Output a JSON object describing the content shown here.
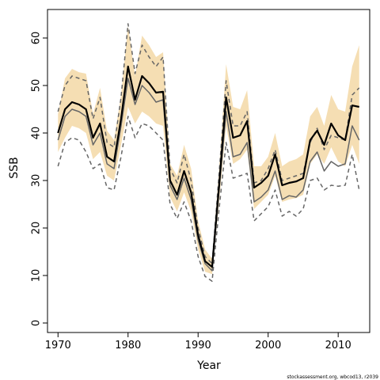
{
  "chart_data": {
    "type": "line",
    "xlabel": "Year",
    "ylabel": "SSB",
    "footnote": "stockassessment.org, wbcod13, r2039",
    "xlim": [
      1968.5,
      2014.5
    ],
    "ylim": [
      -2,
      66
    ],
    "xticks": [
      1970,
      1980,
      1990,
      2000,
      2010
    ],
    "yticks": [
      0,
      10,
      20,
      30,
      40,
      50,
      60
    ],
    "grid": false,
    "legend": "none",
    "colors": {
      "band_fill": "#f5deb3",
      "estimate": "#000000",
      "comparison": "#666666",
      "comparison_bounds": "#666666"
    },
    "x": [
      1970,
      1971,
      1972,
      1973,
      1974,
      1975,
      1976,
      1977,
      1978,
      1979,
      1980,
      1981,
      1982,
      1983,
      1984,
      1985,
      1986,
      1987,
      1988,
      1989,
      1990,
      1991,
      1992,
      1993,
      1994,
      1995,
      1996,
      1997,
      1998,
      1999,
      2000,
      2001,
      2002,
      2003,
      2004,
      2005,
      2006,
      2007,
      2008,
      2009,
      2010,
      2011,
      2012,
      2013
    ],
    "series": [
      {
        "role": "estimate",
        "style": "solid-thick",
        "values": [
          40,
          45,
          46.5,
          46,
          45,
          39,
          42,
          35,
          34,
          43,
          54,
          47,
          52,
          50.5,
          48.5,
          48.7,
          30,
          27,
          32,
          27.5,
          18.5,
          13,
          11.8,
          29,
          47.5,
          39,
          39.5,
          42.5,
          28.5,
          29.5,
          31,
          35.5,
          29,
          29.5,
          29.8,
          30.5,
          38.5,
          40.5,
          37.5,
          42,
          39.5,
          38.5,
          45.8,
          45.5
        ]
      },
      {
        "role": "band_upper",
        "values": [
          44,
          51.5,
          53.5,
          52.8,
          52.5,
          44,
          49.5,
          40.5,
          38.5,
          48,
          62.5,
          52,
          60.5,
          58.5,
          56,
          57,
          33.5,
          31,
          37.5,
          32.5,
          21.5,
          15.5,
          13.5,
          32.5,
          54.5,
          45.5,
          45,
          49,
          33,
          33,
          35,
          40,
          33,
          34,
          34.5,
          35.5,
          43.5,
          45.5,
          41.5,
          48,
          45,
          44.5,
          54,
          58.5
        ]
      },
      {
        "role": "band_lower",
        "values": [
          36,
          39,
          41.5,
          41,
          40,
          34.5,
          36,
          31,
          30,
          37.5,
          45.5,
          42,
          44.5,
          43.5,
          42,
          41.5,
          26.5,
          23.5,
          27.5,
          23.5,
          15.5,
          10.8,
          10.3,
          25.5,
          41.5,
          33.5,
          34.5,
          36.5,
          24,
          25.5,
          27,
          31,
          25.5,
          26,
          26.3,
          27,
          33.5,
          35.5,
          33.5,
          37,
          34,
          33,
          37.5,
          33.5
        ]
      },
      {
        "role": "comparison",
        "style": "solid-thin",
        "values": [
          38.5,
          43.5,
          45,
          44.5,
          43.5,
          37.5,
          40,
          33.5,
          32.5,
          41.5,
          51.5,
          46,
          50,
          48.5,
          46.5,
          47,
          29,
          26,
          30.5,
          26,
          17.5,
          12.5,
          11,
          28,
          44.5,
          35,
          35.5,
          38,
          25.5,
          26.5,
          28,
          32,
          26,
          26.8,
          26.5,
          28,
          34,
          36,
          32,
          34,
          33,
          33.5,
          41.5,
          38.5
        ]
      },
      {
        "role": "comparison_upper",
        "style": "dashed",
        "values": [
          44.5,
          50,
          52,
          51.5,
          51,
          43,
          47.5,
          38,
          37,
          47.5,
          63,
          52.5,
          58.5,
          56,
          54,
          56,
          32.5,
          29.5,
          35.5,
          30,
          20,
          14,
          12.5,
          31.5,
          51,
          41.5,
          41.5,
          44.5,
          29.5,
          30,
          32.5,
          36.5,
          30,
          30.5,
          31,
          31.5,
          38,
          41,
          36.5,
          39.5,
          39,
          38.5,
          48,
          49.5
        ]
      },
      {
        "role": "comparison_lower",
        "style": "dashed",
        "values": [
          33,
          38,
          39,
          38.5,
          36,
          32.5,
          33.5,
          28.5,
          28,
          35,
          43.5,
          39,
          42,
          41.5,
          40,
          38.5,
          25,
          22,
          25.5,
          21.5,
          14,
          9.8,
          8.8,
          24,
          38,
          30.5,
          31,
          31.5,
          21.5,
          23,
          24.5,
          28,
          22.5,
          23.5,
          22.5,
          24,
          30,
          30.5,
          28,
          29,
          28.8,
          29,
          35.5,
          28
        ]
      }
    ]
  }
}
